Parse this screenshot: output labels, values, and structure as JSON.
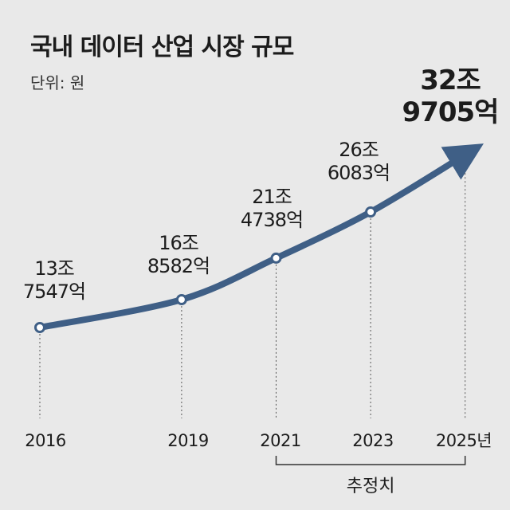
{
  "chart_data": {
    "type": "line",
    "title": "국내 데이터 산업 시장 규모",
    "unit_label": "단위: 원",
    "x": [
      "2016",
      "2019",
      "2021",
      "2023",
      "2025년"
    ],
    "series": [
      {
        "values": [
          137547,
          168582,
          214738,
          266083,
          329705
        ],
        "labels": [
          [
            "13조",
            "7547억"
          ],
          [
            "16조",
            "8582억"
          ],
          [
            "21조",
            "4738억"
          ],
          [
            "26조",
            "6083억"
          ],
          [
            "32조",
            "9705억"
          ]
        ]
      }
    ],
    "estimate_label": "추정치",
    "estimate_range": [
      "2021",
      "2025년"
    ],
    "colors": {
      "line": "#3f5f86",
      "background": "#e9e9e9",
      "text": "#1c1c1c"
    },
    "grid": false,
    "legend": "none"
  }
}
